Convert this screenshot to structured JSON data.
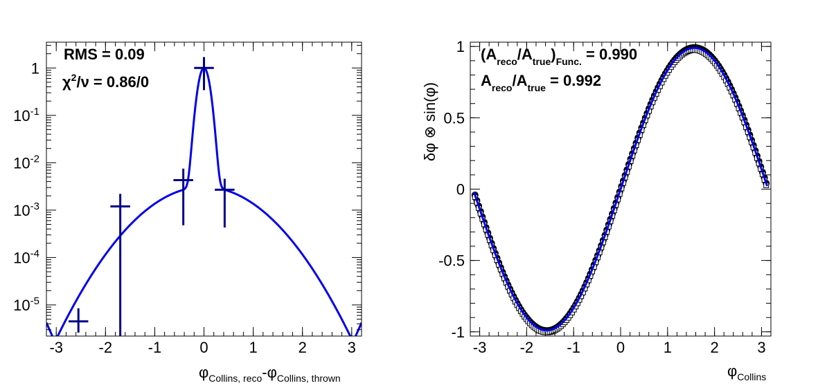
{
  "chart_data": [
    {
      "type": "scatter",
      "xlabel_main": "φ",
      "xlabel_sub1": "Collins, reco",
      "xlabel_mid": "-φ",
      "xlabel_sub2": "Collins, thrown",
      "xlim": [
        -3.2,
        3.2
      ],
      "y_scale": "log",
      "ylim": [
        2.2e-06,
        3.5
      ],
      "x_ticks": [
        "-3",
        "-2",
        "-1",
        "0",
        "1",
        "2",
        "3"
      ],
      "y_ticks": [
        {
          "value": 1,
          "label": "1"
        },
        {
          "value": 0.1,
          "base": "10",
          "exp": "-1"
        },
        {
          "value": 0.01,
          "base": "10",
          "exp": "-2"
        },
        {
          "value": 0.001,
          "base": "10",
          "exp": "-3"
        },
        {
          "value": 0.0001,
          "base": "10",
          "exp": "-4"
        },
        {
          "value": 1e-05,
          "base": "10",
          "exp": "-5"
        }
      ],
      "stats": {
        "rms_label": "RMS = 0.09",
        "chi_symbol": "χ",
        "chi_sup": "2",
        "chi_rest": "/ν = 0.86/0"
      },
      "points": [
        {
          "x": -2.55,
          "y": 4.5e-06,
          "xerr": 0.2,
          "ylo": 2.6e-06,
          "yhi": 8.5e-06
        },
        {
          "x": -1.7,
          "y": 0.0012,
          "xerr": 0.2,
          "ylo": 2.2e-06,
          "yhi": 0.0022
        },
        {
          "x": -0.42,
          "y": 0.0043,
          "xerr": 0.2,
          "ylo": 0.00048,
          "yhi": 0.0075
        },
        {
          "x": 0.0,
          "y": 1.0,
          "xerr": 0.2,
          "ylo": 0.34,
          "yhi": 1.7
        },
        {
          "x": 0.42,
          "y": 0.0027,
          "xerr": 0.2,
          "ylo": 0.00043,
          "yhi": 0.0046
        }
      ],
      "fit": {
        "color": "#0000ee",
        "gauss_amp": 1.0,
        "gauss_sigma": 0.09,
        "broad_amp": 0.0031,
        "broad_sigma": 0.78
      },
      "marker_color": "#00008b"
    },
    {
      "type": "scatter",
      "ylabel": "δφ ⊗ sin(φ)",
      "xlabel_main": "φ",
      "xlabel_sub": "Collins",
      "xlim": [
        -3.2,
        3.2
      ],
      "ylim": [
        -1.03,
        1.03
      ],
      "x_ticks": [
        "-3",
        "-2",
        "-1",
        "0",
        "1",
        "2",
        "3"
      ],
      "y_ticks": [
        {
          "value": 1,
          "label": "1"
        },
        {
          "value": 0.5,
          "label": "0.5"
        },
        {
          "value": 0,
          "label": "0"
        },
        {
          "value": -0.5,
          "label": "-0.5"
        },
        {
          "value": -1,
          "label": "-1"
        }
      ],
      "annotations": {
        "func_open": "(A",
        "func_sub1": "reco",
        "func_slash": "/A",
        "func_sub2": "true",
        "func_close": ")",
        "func_sub3": "Func.",
        "func_value": " = 0.990",
        "data_a": "A",
        "data_sub1": "reco",
        "data_slash": "/A",
        "data_sub2": "true",
        "data_value": " = 0.992"
      },
      "series": [
        {
          "marker": "circle",
          "amplitude": 0.992,
          "x_range": [
            -3.1,
            3.1
          ],
          "n": 160,
          "color": "#000000"
        },
        {
          "marker": "square-open",
          "amplitude": 0.99,
          "x_range": [
            -3.1,
            3.1
          ],
          "n": 160,
          "color": "#000000"
        },
        {
          "marker": "line",
          "amplitude": 0.99,
          "x_range": [
            -3.12,
            3.12
          ],
          "color": "#0000ee"
        }
      ]
    }
  ]
}
